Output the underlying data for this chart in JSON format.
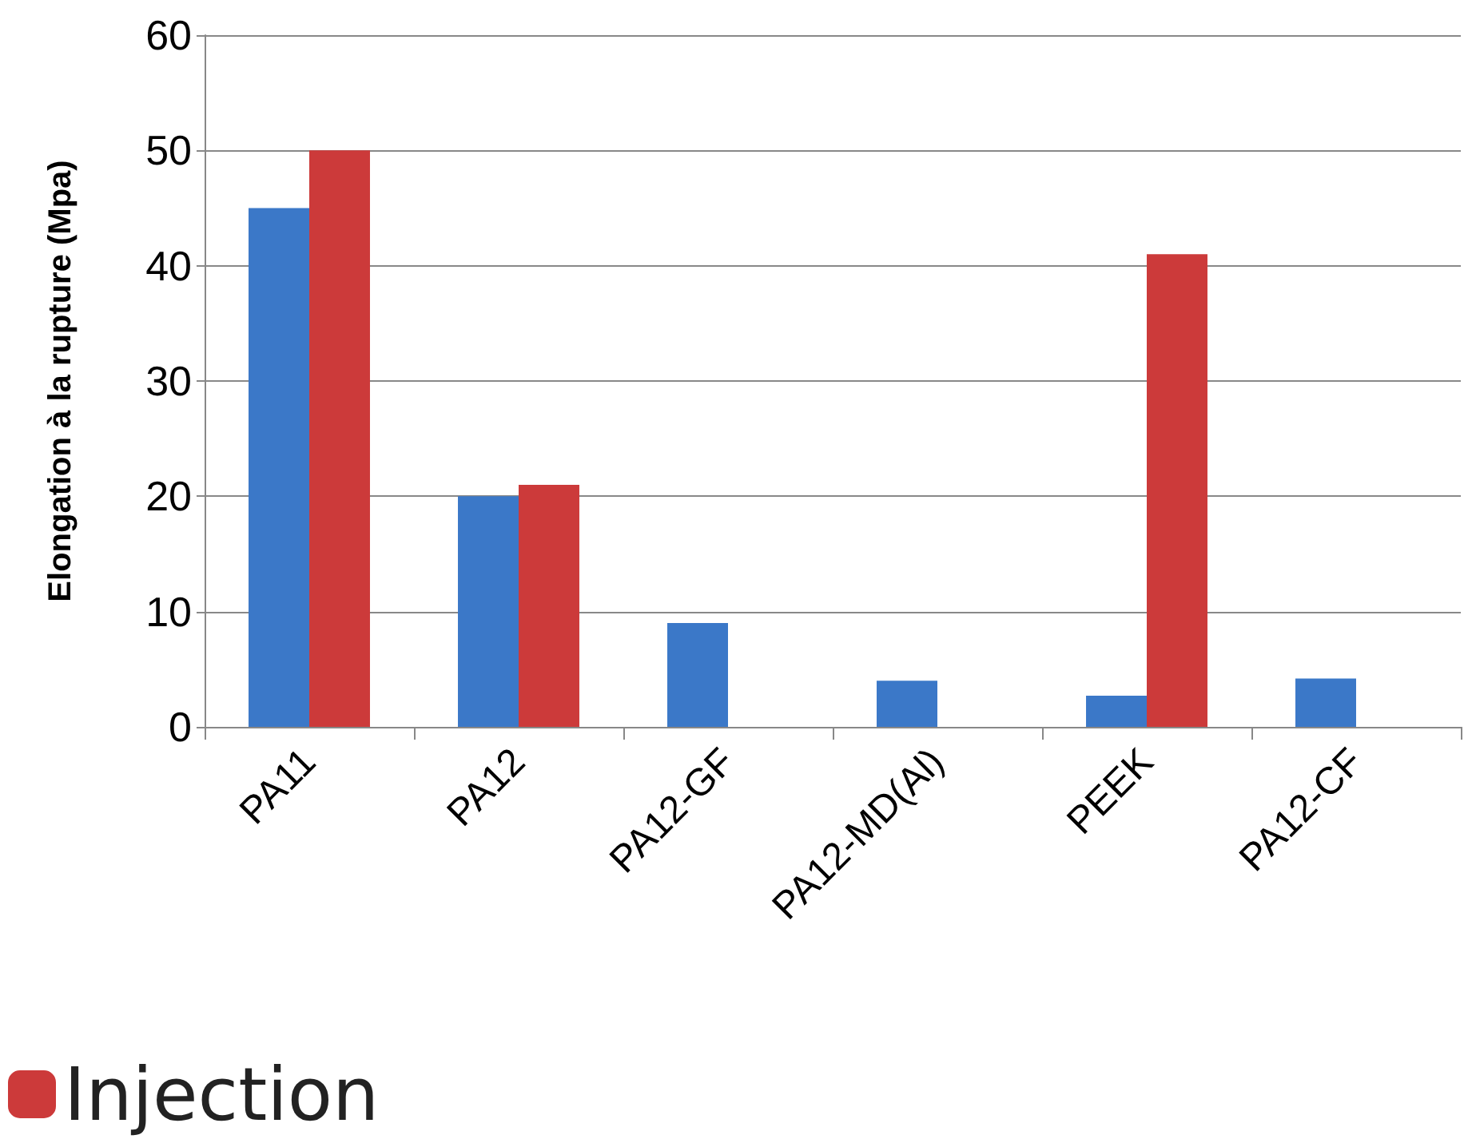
{
  "chart_data": {
    "type": "bar",
    "ylabel": "Elongation à la rupture (Mpa)",
    "categories": [
      "PA11",
      "PA12",
      "PA12-GF",
      "PA12-MD(Al)",
      "PEEK",
      "PA12-CF"
    ],
    "series": [
      {
        "color": "#3b78c8",
        "values": [
          45,
          20,
          9,
          4,
          2.7,
          4.2
        ]
      },
      {
        "name": "Injection",
        "color": "#cc3a3a",
        "values": [
          50,
          21,
          null,
          null,
          41,
          null
        ]
      }
    ],
    "ylim": [
      0,
      60
    ],
    "yticks": [
      0,
      10,
      20,
      30,
      40,
      50,
      60
    ],
    "grid": "y",
    "legend": "bottom left"
  }
}
